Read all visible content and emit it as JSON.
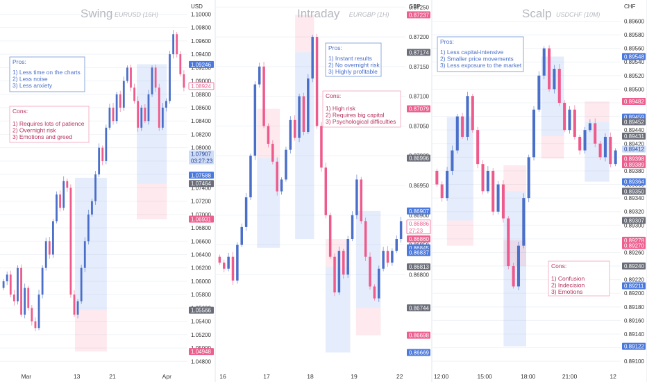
{
  "colors": {
    "up": "#4a6fc9",
    "down": "#ee5a8b",
    "wick": "#9aa9d8",
    "grid": "#f1f3f6",
    "axis_text": "#333333",
    "title": "#b5b8c0",
    "pros_border": "#6f93d6",
    "pros_text": "#4a6fc9",
    "cons_border": "#f0a3bc",
    "cons_text": "#b4325e",
    "blue_zone": "rgba(96,140,235,0.16)",
    "pink_zone": "rgba(240,120,150,0.16)",
    "grey_tag": "#6a6d78",
    "blue_tag": "#4a78dd",
    "pink_tag": "#ec5f8e"
  },
  "panels": [
    {
      "title": "Swing",
      "subtitle": "EURUSD (16H)",
      "currency": "USD",
      "pros": {
        "title": "Pros:",
        "items": [
          "1) Less time on the charts",
          "2) Less noise",
          "3) Less anxiety"
        ]
      },
      "cons": {
        "title": "Cons:",
        "items": [
          "1) Requires lots of patience",
          "2) Overnight risk",
          "3) Emotions and greed"
        ]
      },
      "x_ticks": [
        "Mar",
        "13",
        "21",
        "Apr"
      ],
      "price_labels": [
        {
          "text": "1.09246",
          "kind": "blue"
        },
        {
          "text": "1.08924",
          "kind": "pink-outline"
        },
        {
          "text": "1.07907",
          "sub": "03:27:23",
          "kind": "lightblue"
        },
        {
          "text": "1.07588",
          "kind": "blue"
        },
        {
          "text": "1.07464",
          "kind": "grey"
        },
        {
          "text": "1.06931",
          "kind": "pink"
        },
        {
          "text": "1.05566",
          "kind": "grey"
        },
        {
          "text": "1.04948",
          "kind": "pink"
        }
      ]
    },
    {
      "title": "Intraday",
      "subtitle": "EURGBP (1H)",
      "currency": "GBP",
      "pros": {
        "title": "Pros:",
        "items": [
          "1) Instant results",
          "2) No overnight risk",
          "3) Highly profitable"
        ]
      },
      "cons": {
        "title": "Cons:",
        "items": [
          "1) High risk",
          "2) Requires big capital",
          "3) Psychological difficulties"
        ]
      },
      "x_ticks": [
        "16",
        "17",
        "18",
        "19",
        "22"
      ],
      "price_labels": [
        {
          "text": "0.87237",
          "kind": "pink"
        },
        {
          "text": "0.87174",
          "kind": "grey"
        },
        {
          "text": "0.87079",
          "kind": "pink"
        },
        {
          "text": "0.86996",
          "kind": "grey"
        },
        {
          "text": "0.86907",
          "kind": "blue"
        },
        {
          "text": "0.86886",
          "sub": "27:23",
          "kind": "pink-outline"
        },
        {
          "text": "0.86860",
          "kind": "pink"
        },
        {
          "text": "0.86845",
          "kind": "blue"
        },
        {
          "text": "0.86837",
          "kind": "blue"
        },
        {
          "text": "0.86813",
          "kind": "grey"
        },
        {
          "text": "0.86744",
          "kind": "grey"
        },
        {
          "text": "0.86698",
          "kind": "pink"
        },
        {
          "text": "0.86669",
          "kind": "blue"
        }
      ]
    },
    {
      "title": "Scalp",
      "subtitle": "USDCHF (10M)",
      "currency": "CHF",
      "pros": {
        "title": "Pros:",
        "items": [
          "1) Less capital-intensive",
          "2) Smaller price movements",
          "3) Less exposure to the market"
        ]
      },
      "cons": {
        "title": "Cons:",
        "items": [
          "1) Confusion",
          "2) Indecision",
          "3) Emotions"
        ]
      },
      "x_ticks": [
        "12:00",
        "15:00",
        "18:00",
        "21:00",
        "12"
      ],
      "price_labels": [
        {
          "text": "0.89548",
          "kind": "blue"
        },
        {
          "text": "0.89482",
          "kind": "pink"
        },
        {
          "text": "0.89459",
          "kind": "blue"
        },
        {
          "text": "0.89452",
          "kind": "grey"
        },
        {
          "text": "0.89431",
          "kind": "grey"
        },
        {
          "text": "0.89412",
          "kind": "lightblue"
        },
        {
          "text": "0.89398",
          "kind": "pink"
        },
        {
          "text": "0.89389",
          "kind": "pink"
        },
        {
          "text": "0.89364",
          "kind": "blue"
        },
        {
          "text": "0.89350",
          "kind": "grey"
        },
        {
          "text": "0.89307",
          "kind": "grey"
        },
        {
          "text": "0.89278",
          "kind": "pink"
        },
        {
          "text": "0.89270",
          "kind": "pink"
        },
        {
          "text": "0.89240",
          "kind": "grey"
        },
        {
          "text": "0.89211",
          "kind": "blue"
        },
        {
          "text": "0.89122",
          "kind": "blue"
        }
      ]
    }
  ],
  "chart_data": [
    {
      "type": "candlestick",
      "title": "Swing",
      "subtitle": "EURUSD (16H)",
      "ylabel": "USD",
      "ylim": [
        1.0472,
        1.1015
      ],
      "y_ticks": [
        1.048,
        1.05,
        1.052,
        1.054,
        1.056,
        1.058,
        1.06,
        1.062,
        1.064,
        1.066,
        1.068,
        1.07,
        1.072,
        1.074,
        1.076,
        1.078,
        1.08,
        1.082,
        1.084,
        1.086,
        1.088,
        1.09,
        1.092,
        1.094,
        1.096,
        1.098,
        1.1
      ],
      "x_ticks": [
        "Mar",
        "13",
        "21",
        "Apr"
      ],
      "close_path": [
        1.06,
        1.061,
        1.058,
        1.057,
        1.062,
        1.055,
        1.059,
        1.056,
        1.054,
        1.053,
        1.058,
        1.062,
        1.066,
        1.064,
        1.069,
        1.073,
        1.071,
        1.075,
        1.074,
        1.058,
        1.055,
        1.057,
        1.062,
        1.066,
        1.07,
        1.072,
        1.076,
        1.08,
        1.078,
        1.083,
        1.086,
        1.084,
        1.088,
        1.086,
        1.09,
        1.092,
        1.089,
        1.087,
        1.083,
        1.086,
        1.084,
        1.088,
        1.092,
        1.089,
        1.083,
        1.086,
        1.087,
        1.094,
        1.097,
        1.094,
        1.091,
        1.089
      ],
      "series": [
        {
          "name": "EURUSD",
          "values": [
            1.06,
            1.061,
            1.058,
            1.057,
            1.062,
            1.055,
            1.059,
            1.056,
            1.054,
            1.053,
            1.058,
            1.062,
            1.066,
            1.064,
            1.069,
            1.073,
            1.071,
            1.075,
            1.074,
            1.058,
            1.055,
            1.057,
            1.062,
            1.066,
            1.07,
            1.072,
            1.076,
            1.08,
            1.078,
            1.083,
            1.086,
            1.084,
            1.088,
            1.086,
            1.09,
            1.092,
            1.089,
            1.087,
            1.083,
            1.086,
            1.084,
            1.088,
            1.092,
            1.089,
            1.083,
            1.086,
            1.087,
            1.094,
            1.097,
            1.094,
            1.091,
            1.089
          ]
        }
      ],
      "zones": [
        {
          "kind": "blue",
          "x0": 0.4,
          "x1": 0.57,
          "y0": 1.0557,
          "y1": 1.0755
        },
        {
          "kind": "pink",
          "x0": 0.4,
          "x1": 0.57,
          "y0": 1.0495,
          "y1": 1.0557
        },
        {
          "kind": "blue",
          "x0": 0.73,
          "x1": 0.89,
          "y0": 1.0746,
          "y1": 1.0925
        },
        {
          "kind": "pink",
          "x0": 0.73,
          "x1": 0.89,
          "y0": 1.0693,
          "y1": 1.0746
        }
      ]
    },
    {
      "type": "candlestick",
      "title": "Intraday",
      "subtitle": "EURGBP (1H)",
      "ylabel": "GBP",
      "ylim": [
        0.86645,
        0.87255
      ],
      "y_ticks": [
        0.868,
        0.8685,
        0.869,
        0.8695,
        0.87,
        0.8705,
        0.871,
        0.8715,
        0.872,
        0.8725
      ],
      "x_ticks": [
        "16",
        "17",
        "18",
        "19",
        "22"
      ],
      "close_path": [
        0.8682,
        0.8681,
        0.8683,
        0.8679,
        0.8685,
        0.8688,
        0.8693,
        0.87,
        0.8712,
        0.8715,
        0.8705,
        0.8702,
        0.8699,
        0.8694,
        0.8696,
        0.8701,
        0.8706,
        0.8703,
        0.871,
        0.8704,
        0.8713,
        0.872,
        0.8705,
        0.8698,
        0.869,
        0.8683,
        0.8677,
        0.8684,
        0.868,
        0.8686,
        0.869,
        0.8696,
        0.8689,
        0.8683,
        0.8678,
        0.8676,
        0.8681,
        0.8684,
        0.8682,
        0.8684,
        0.8686,
        0.8689
      ],
      "series": [
        {
          "name": "EURGBP",
          "values": [
            0.8682,
            0.8681,
            0.8683,
            0.8679,
            0.8685,
            0.8688,
            0.8693,
            0.87,
            0.8712,
            0.8715,
            0.8705,
            0.8702,
            0.8699,
            0.8694,
            0.8696,
            0.8701,
            0.8706,
            0.8703,
            0.871,
            0.8704,
            0.8713,
            0.872,
            0.8705,
            0.8698,
            0.869,
            0.8683,
            0.8677,
            0.8684,
            0.868,
            0.8686,
            0.869,
            0.8696,
            0.8689,
            0.8683,
            0.8678,
            0.8676,
            0.8681,
            0.8684,
            0.8682,
            0.8684,
            0.8686,
            0.8689
          ]
        }
      ],
      "zones": [
        {
          "kind": "pink",
          "x0": 0.22,
          "x1": 0.34,
          "y0": 0.86996,
          "y1": 0.87079
        },
        {
          "kind": "blue",
          "x0": 0.22,
          "x1": 0.34,
          "y0": 0.86845,
          "y1": 0.86996
        },
        {
          "kind": "pink",
          "x0": 0.42,
          "x1": 0.52,
          "y0": 0.87174,
          "y1": 0.87237
        },
        {
          "kind": "blue",
          "x0": 0.42,
          "x1": 0.52,
          "y0": 0.8686,
          "y1": 0.87174
        },
        {
          "kind": "pink",
          "x0": 0.58,
          "x1": 0.71,
          "y0": 0.86813,
          "y1": 0.8686
        },
        {
          "kind": "blue",
          "x0": 0.58,
          "x1": 0.71,
          "y0": 0.86669,
          "y1": 0.86813
        },
        {
          "kind": "blue",
          "x0": 0.74,
          "x1": 0.87,
          "y0": 0.86744,
          "y1": 0.86907
        },
        {
          "kind": "pink",
          "x0": 0.74,
          "x1": 0.87,
          "y0": 0.86698,
          "y1": 0.86744
        }
      ]
    },
    {
      "type": "candlestick",
      "title": "Scalp",
      "subtitle": "USDCHF (10M)",
      "ylabel": "CHF",
      "ylim": [
        0.89092,
        0.89625
      ],
      "y_ticks": [
        0.891,
        0.8912,
        0.8914,
        0.8916,
        0.8918,
        0.892,
        0.8922,
        0.8924,
        0.8926,
        0.8928,
        0.893,
        0.8932,
        0.8934,
        0.8936,
        0.8938,
        0.894,
        0.8942,
        0.8944,
        0.8946,
        0.8948,
        0.895,
        0.8952,
        0.8954,
        0.8956,
        0.8958,
        0.896
      ],
      "x_ticks": [
        "12:00",
        "15:00",
        "18:00",
        "21:00",
        "12"
      ],
      "close_path": [
        0.8936,
        0.8934,
        0.8938,
        0.8941,
        0.8946,
        0.8943,
        0.8949,
        0.8944,
        0.8939,
        0.8935,
        0.8938,
        0.8932,
        0.8936,
        0.8931,
        0.8924,
        0.8921,
        0.8927,
        0.8934,
        0.894,
        0.8947,
        0.8952,
        0.8956,
        0.895,
        0.8953,
        0.8948,
        0.8944,
        0.8947,
        0.8943,
        0.8941,
        0.8944,
        0.8945,
        0.8942,
        0.894,
        0.8943,
        0.8939,
        0.8941
      ],
      "series": [
        {
          "name": "USDCHF",
          "values": [
            0.8936,
            0.8934,
            0.8938,
            0.8941,
            0.8946,
            0.8943,
            0.8949,
            0.8944,
            0.8939,
            0.8935,
            0.8938,
            0.8932,
            0.8936,
            0.8931,
            0.8924,
            0.8921,
            0.8927,
            0.8934,
            0.894,
            0.8947,
            0.8952,
            0.8956,
            0.895,
            0.8953,
            0.8948,
            0.8944,
            0.8947,
            0.8943,
            0.8941,
            0.8944,
            0.8945,
            0.8942,
            0.894,
            0.8943,
            0.8939,
            0.8941
          ]
        }
      ],
      "zones": [
        {
          "kind": "blue",
          "x0": 0.08,
          "x1": 0.22,
          "y0": 0.89307,
          "y1": 0.89459
        },
        {
          "kind": "pink",
          "x0": 0.08,
          "x1": 0.22,
          "y0": 0.8927,
          "y1": 0.89307
        },
        {
          "kind": "pink",
          "x0": 0.38,
          "x1": 0.5,
          "y0": 0.8935,
          "y1": 0.89388
        },
        {
          "kind": "blue",
          "x0": 0.38,
          "x1": 0.5,
          "y0": 0.89122,
          "y1": 0.8935
        },
        {
          "kind": "pink",
          "x0": 0.38,
          "x1": 0.5,
          "y0": 0.8924,
          "y1": 0.89278
        },
        {
          "kind": "blue",
          "x0": 0.58,
          "x1": 0.7,
          "y0": 0.89431,
          "y1": 0.89548
        },
        {
          "kind": "pink",
          "x0": 0.58,
          "x1": 0.7,
          "y0": 0.89398,
          "y1": 0.89431
        },
        {
          "kind": "pink",
          "x0": 0.81,
          "x1": 0.94,
          "y0": 0.89452,
          "y1": 0.89482
        },
        {
          "kind": "blue",
          "x0": 0.81,
          "x1": 0.94,
          "y0": 0.89364,
          "y1": 0.89452
        }
      ]
    }
  ]
}
